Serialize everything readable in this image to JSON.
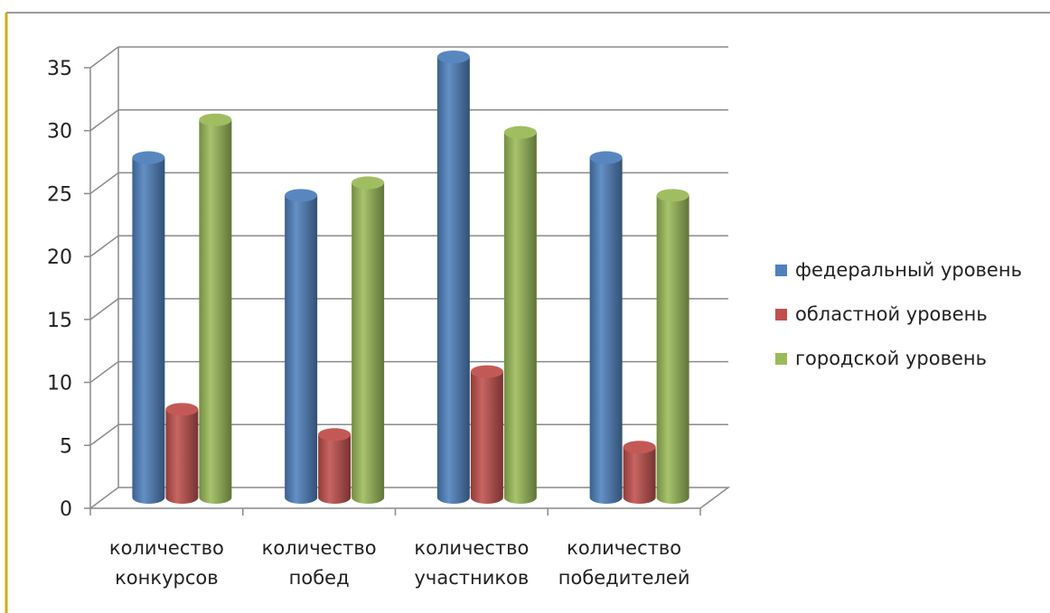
{
  "chart_data": {
    "type": "bar",
    "title": "",
    "xlabel": "",
    "ylabel": "",
    "ylim": [
      0,
      35
    ],
    "yticks": [
      0,
      5,
      10,
      15,
      20,
      25,
      30,
      35
    ],
    "categories": [
      [
        "количество",
        "конкурсов"
      ],
      [
        "количество",
        "побед"
      ],
      [
        "количество",
        "участников"
      ],
      [
        "количество",
        "победителей"
      ]
    ],
    "series": [
      {
        "name": "федеральный уровень",
        "color": "#4f81bd",
        "values": [
          27,
          24,
          35,
          27
        ]
      },
      {
        "name": "областной уровень",
        "color": "#c0504d",
        "values": [
          7,
          5,
          10,
          4
        ]
      },
      {
        "name": "городской уровень",
        "color": "#9bbb59",
        "values": [
          30,
          25,
          29,
          24
        ]
      }
    ],
    "grid": true,
    "legend_position": "right",
    "frame_colors": {
      "left_border": "#c9b400",
      "top_border": "#9a9a9a"
    }
  }
}
